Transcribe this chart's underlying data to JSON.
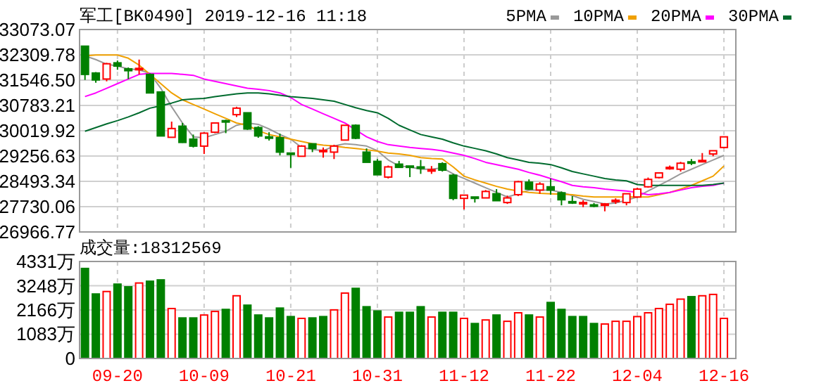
{
  "chart_data": [
    {
      "type": "candlestick",
      "title": "军工[BK0490] 2019-12-16 11:18",
      "categories": [
        null,
        null,
        null,
        null,
        null,
        null,
        null,
        null,
        null,
        null,
        null,
        null,
        null,
        null,
        null,
        null,
        null,
        null,
        null,
        null,
        null,
        null,
        null,
        null,
        null,
        null,
        null,
        null,
        null,
        null,
        null,
        null,
        null,
        null,
        null,
        null,
        null,
        null,
        null,
        null,
        null,
        null,
        null,
        null,
        null,
        null,
        null,
        null,
        null,
        null,
        null,
        null,
        null,
        null,
        null,
        null,
        null,
        null,
        null,
        null
      ],
      "ohlc": [
        [
          32571,
          32571,
          31552,
          31719
        ],
        [
          31761,
          31789,
          31468,
          31552
        ],
        [
          31580,
          32068,
          31510,
          32040
        ],
        [
          32068,
          32138,
          31859,
          31971
        ],
        [
          31887,
          31929,
          31580,
          31831
        ],
        [
          31859,
          32166,
          31719,
          31901
        ],
        [
          31719,
          31747,
          31161,
          31161
        ],
        [
          31189,
          31189,
          29863,
          29863
        ],
        [
          29822,
          30296,
          29822,
          30087
        ],
        [
          30157,
          30254,
          29654,
          29668
        ],
        [
          29766,
          29905,
          29515,
          29556
        ],
        [
          29556,
          29975,
          29319,
          29947
        ],
        [
          29975,
          30254,
          29947,
          30254
        ],
        [
          30324,
          30352,
          29947,
          30282
        ],
        [
          30505,
          30743,
          30436,
          30701
        ],
        [
          30561,
          30561,
          30045,
          30073
        ],
        [
          30115,
          30157,
          29808,
          29863
        ],
        [
          29836,
          29975,
          29724,
          29822
        ],
        [
          29808,
          29933,
          29277,
          29375
        ],
        [
          29347,
          29347,
          28901,
          29319
        ],
        [
          29250,
          29584,
          29250,
          29556
        ],
        [
          29626,
          29626,
          29375,
          29487
        ],
        [
          29417,
          29515,
          29208,
          29430
        ],
        [
          29375,
          29598,
          29166,
          29556
        ],
        [
          29738,
          30184,
          29724,
          30184
        ],
        [
          30184,
          30212,
          29766,
          29794
        ],
        [
          29375,
          29487,
          29068,
          29068
        ],
        [
          29096,
          29166,
          28691,
          28691
        ],
        [
          28622,
          28970,
          28580,
          28929
        ],
        [
          29012,
          29110,
          28901,
          28915
        ],
        [
          28956,
          28956,
          28622,
          28929
        ],
        [
          28929,
          29138,
          28719,
          28901
        ],
        [
          28831,
          28956,
          28719,
          28845
        ],
        [
          29026,
          29068,
          28789,
          28831
        ],
        [
          28677,
          28719,
          27924,
          27980
        ],
        [
          27980,
          28077,
          27645,
          28077
        ],
        [
          28022,
          28022,
          27854,
          27980
        ],
        [
          27994,
          28231,
          27994,
          28189
        ],
        [
          28119,
          28259,
          27910,
          27910
        ],
        [
          27854,
          28063,
          27812,
          27994
        ],
        [
          28091,
          28510,
          28049,
          28482
        ],
        [
          28468,
          28552,
          28231,
          28259
        ],
        [
          28231,
          28468,
          28119,
          28412
        ],
        [
          28329,
          28580,
          28091,
          28231
        ],
        [
          28147,
          28189,
          27770,
          27938
        ],
        [
          27882,
          28049,
          27812,
          27840
        ],
        [
          27840,
          27924,
          27715,
          27854
        ],
        [
          27784,
          27840,
          27715,
          27770
        ],
        [
          27770,
          27840,
          27589,
          27812
        ],
        [
          27910,
          27980,
          27812,
          27924
        ],
        [
          27854,
          28119,
          27770,
          28119
        ],
        [
          28022,
          28301,
          27994,
          28259
        ],
        [
          28329,
          28608,
          28301,
          28552
        ],
        [
          28608,
          28747,
          28580,
          28747
        ],
        [
          28900,
          28970,
          28845,
          28915
        ],
        [
          28859,
          29082,
          28789,
          29040
        ],
        [
          29082,
          29166,
          28984,
          29068
        ],
        [
          29096,
          29347,
          29068,
          29124
        ],
        [
          29319,
          29417,
          29250,
          29417
        ],
        [
          29515,
          29836,
          29487,
          29836
        ]
      ],
      "colors": [
        "#008000",
        "#008000",
        "#ff0000",
        "#008000",
        "#008000",
        "#ff0000",
        "#008000",
        "#008000",
        "#ff0000",
        "#008000",
        "#008000",
        "#ff0000",
        "#ff0000",
        "#008000",
        "#ff0000",
        "#008000",
        "#008000",
        "#008000",
        "#008000",
        "#008000",
        "#ff0000",
        "#008000",
        "#ff0000",
        "#ff0000",
        "#ff0000",
        "#008000",
        "#008000",
        "#008000",
        "#ff0000",
        "#008000",
        "#008000",
        "#008000",
        "#ff0000",
        "#008000",
        "#008000",
        "#ff0000",
        "#008000",
        "#ff0000",
        "#008000",
        "#ff0000",
        "#ff0000",
        "#008000",
        "#ff0000",
        "#008000",
        "#008000",
        "#008000",
        "#ff0000",
        "#008000",
        "#ff0000",
        "#ff0000",
        "#ff0000",
        "#ff0000",
        "#ff0000",
        "#ff0000",
        "#ff0000",
        "#ff0000",
        "#008000",
        "#ff0000",
        "#ff0000",
        "#ff0000"
      ],
      "series": [
        {
          "name": "5PMA",
          "type": "line",
          "color": "#999999",
          "values": [
            32278,
            32166,
            32027,
            31971,
            31887,
            31859,
            31747,
            31301,
            30743,
            30254,
            29836,
            29808,
            29906,
            30003,
            30185,
            30254,
            30213,
            30073,
            29906,
            29766,
            29515,
            29459,
            29417,
            29557,
            29626,
            29599,
            29557,
            29417,
            29138,
            28957,
            28929,
            28859,
            28859,
            28901,
            28719,
            28580,
            28440,
            28301,
            28161,
            28022,
            28119,
            28231,
            28231,
            28231,
            28161,
            28064,
            27952,
            27882,
            27812,
            27840,
            27924,
            28022,
            28203,
            28371,
            28538,
            28719,
            28859,
            28999,
            29138,
            29278
          ]
        },
        {
          "name": "10PMA",
          "type": "line",
          "color": "#f0a000",
          "values": [
            32278,
            32306,
            32306,
            32306,
            32208,
            31999,
            31720,
            31440,
            31161,
            30952,
            30813,
            30673,
            30533,
            30394,
            30254,
            30185,
            30017,
            29906,
            29836,
            29766,
            29696,
            29626,
            29585,
            29557,
            29515,
            29487,
            29445,
            29403,
            29347,
            29319,
            29278,
            29208,
            29180,
            29166,
            28929,
            28650,
            28538,
            28440,
            28343,
            28259,
            28203,
            28161,
            28133,
            28119,
            28105,
            28092,
            28050,
            28022,
            28022,
            28022,
            28022,
            28022,
            28022,
            28092,
            28161,
            28259,
            28371,
            28510,
            28650,
            28957
          ]
        },
        {
          "name": "20PMA",
          "type": "line",
          "color": "#ff00ff",
          "values": [
            31050,
            31161,
            31301,
            31440,
            31580,
            31720,
            31747,
            31747,
            31747,
            31720,
            31692,
            31580,
            31510,
            31440,
            31371,
            31301,
            31273,
            31231,
            31161,
            31022,
            30813,
            30673,
            30533,
            30394,
            30254,
            30045,
            29836,
            29696,
            29599,
            29557,
            29515,
            29487,
            29459,
            29417,
            29347,
            29278,
            29180,
            29068,
            28999,
            28929,
            28859,
            28761,
            28678,
            28580,
            28482,
            28371,
            28329,
            28301,
            28259,
            28231,
            28203,
            28161,
            28092,
            28119,
            28161,
            28231,
            28301,
            28343,
            28371,
            28440
          ]
        },
        {
          "name": "30PMA",
          "type": "line",
          "color": "#006b2e",
          "values": [
            30003,
            30115,
            30226,
            30324,
            30436,
            30561,
            30701,
            30771,
            30854,
            30952,
            30980,
            30994,
            31050,
            31092,
            31133,
            31161,
            31161,
            31133,
            31092,
            31050,
            31022,
            30994,
            30952,
            30910,
            30813,
            30715,
            30631,
            30561,
            30394,
            30185,
            30045,
            29906,
            29836,
            29766,
            29654,
            29557,
            29487,
            29417,
            29319,
            29208,
            29138,
            29068,
            29040,
            28999,
            28901,
            28789,
            28719,
            28650,
            28580,
            28538,
            28510,
            28399,
            28371,
            28371,
            28371,
            28371,
            28371,
            28371,
            28399,
            28440
          ]
        }
      ],
      "ylim": [
        26966.77,
        33073.07
      ],
      "yticks": [
        26966.77,
        27730.06,
        28493.34,
        29256.63,
        {
          "value": 30019.92,
          "label": "30019.92"
        },
        30783.21,
        {
          "value": 31546.5,
          "label": "31546.50"
        },
        32309.78,
        33073.07
      ],
      "grid": true,
      "legend": "top right",
      "tick_labels": "y"
    },
    {
      "type": "bar",
      "title": "成交量:18312569",
      "categories": [
        null,
        null,
        null,
        "09-20",
        null,
        null,
        null,
        null,
        null,
        null,
        null,
        "10-09",
        null,
        null,
        null,
        null,
        null,
        null,
        null,
        "10-21",
        null,
        null,
        null,
        null,
        null,
        null,
        null,
        "10-31",
        null,
        null,
        null,
        null,
        null,
        null,
        null,
        "11-12",
        null,
        null,
        null,
        null,
        null,
        null,
        null,
        "11-22",
        null,
        null,
        null,
        null,
        null,
        null,
        null,
        "12-04",
        null,
        null,
        null,
        null,
        null,
        null,
        null,
        "12-16"
      ],
      "values": [
        4020,
        2880,
        2990,
        3320,
        3200,
        3370,
        3450,
        3510,
        2230,
        1810,
        1810,
        1940,
        2100,
        2190,
        2800,
        2380,
        1940,
        1810,
        2250,
        1870,
        1790,
        1810,
        1870,
        2170,
        2920,
        3130,
        2310,
        2120,
        1850,
        2060,
        2060,
        2310,
        1850,
        2060,
        2060,
        1790,
        1560,
        1720,
        1940,
        1660,
        2040,
        1940,
        1850,
        2500,
        2190,
        1870,
        1870,
        1560,
        1540,
        1660,
        1660,
        1870,
        2040,
        2230,
        2420,
        2650,
        2760,
        2800,
        2860,
        1790
      ],
      "colors": [
        "#008000",
        "#008000",
        "#ff0000",
        "#008000",
        "#008000",
        "#ff0000",
        "#008000",
        "#008000",
        "#ff0000",
        "#008000",
        "#008000",
        "#ff0000",
        "#ff0000",
        "#008000",
        "#ff0000",
        "#008000",
        "#008000",
        "#008000",
        "#008000",
        "#008000",
        "#ff0000",
        "#008000",
        "#008000",
        "#ff0000",
        "#ff0000",
        "#008000",
        "#008000",
        "#008000",
        "#ff0000",
        "#008000",
        "#008000",
        "#008000",
        "#ff0000",
        "#008000",
        "#008000",
        "#ff0000",
        "#008000",
        "#ff0000",
        "#008000",
        "#ff0000",
        "#ff0000",
        "#008000",
        "#ff0000",
        "#008000",
        "#008000",
        "#008000",
        "#008000",
        "#008000",
        "#ff0000",
        "#ff0000",
        "#ff0000",
        "#ff0000",
        "#ff0000",
        "#ff0000",
        "#ff0000",
        "#ff0000",
        "#008000",
        "#ff0000",
        "#ff0000",
        "#ff0000"
      ],
      "ylim": [
        0,
        4331
      ],
      "yticks": [
        {
          "value": 0,
          "label": "0"
        },
        {
          "value": 1083,
          "label": "1083万"
        },
        {
          "value": 2166,
          "label": "2166万"
        },
        {
          "value": 3248,
          "label": "3248万"
        },
        {
          "value": 4331,
          "label": "4331万"
        }
      ],
      "grid": true
    }
  ]
}
